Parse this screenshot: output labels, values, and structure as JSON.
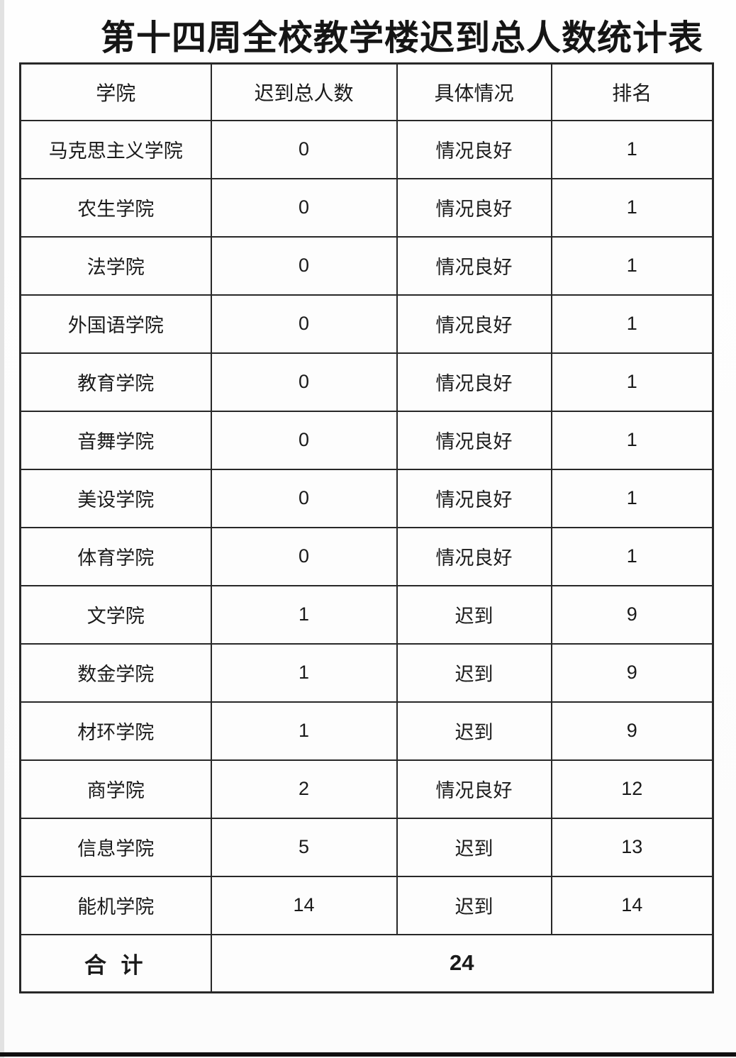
{
  "page_title": "第十四周全校教学楼迟到总人数统计表",
  "table": {
    "headers": [
      "学院",
      "迟到总人数",
      "具体情况",
      "排名"
    ],
    "rows": [
      {
        "college": "马克思主义学院",
        "late_count": "0",
        "status": "情况良好",
        "rank": "1"
      },
      {
        "college": "农生学院",
        "late_count": "0",
        "status": "情况良好",
        "rank": "1"
      },
      {
        "college": "法学院",
        "late_count": "0",
        "status": "情况良好",
        "rank": "1"
      },
      {
        "college": "外国语学院",
        "late_count": "0",
        "status": "情况良好",
        "rank": "1"
      },
      {
        "college": "教育学院",
        "late_count": "0",
        "status": "情况良好",
        "rank": "1"
      },
      {
        "college": "音舞学院",
        "late_count": "0",
        "status": "情况良好",
        "rank": "1"
      },
      {
        "college": "美设学院",
        "late_count": "0",
        "status": "情况良好",
        "rank": "1"
      },
      {
        "college": "体育学院",
        "late_count": "0",
        "status": "情况良好",
        "rank": "1"
      },
      {
        "college": "文学院",
        "late_count": "1",
        "status": "迟到",
        "rank": "9"
      },
      {
        "college": "数金学院",
        "late_count": "1",
        "status": "迟到",
        "rank": "9"
      },
      {
        "college": "材环学院",
        "late_count": "1",
        "status": "迟到",
        "rank": "9"
      },
      {
        "college": "商学院",
        "late_count": "2",
        "status": "情况良好",
        "rank": "12"
      },
      {
        "college": "信息学院",
        "late_count": "5",
        "status": "迟到",
        "rank": "13"
      },
      {
        "college": "能机学院",
        "late_count": "14",
        "status": "迟到",
        "rank": "14"
      }
    ],
    "total_label": "合 计",
    "total_value": "24"
  },
  "colors": {
    "border": "#282828",
    "text": "#1a1a1a",
    "background": "#fdfdfd"
  }
}
